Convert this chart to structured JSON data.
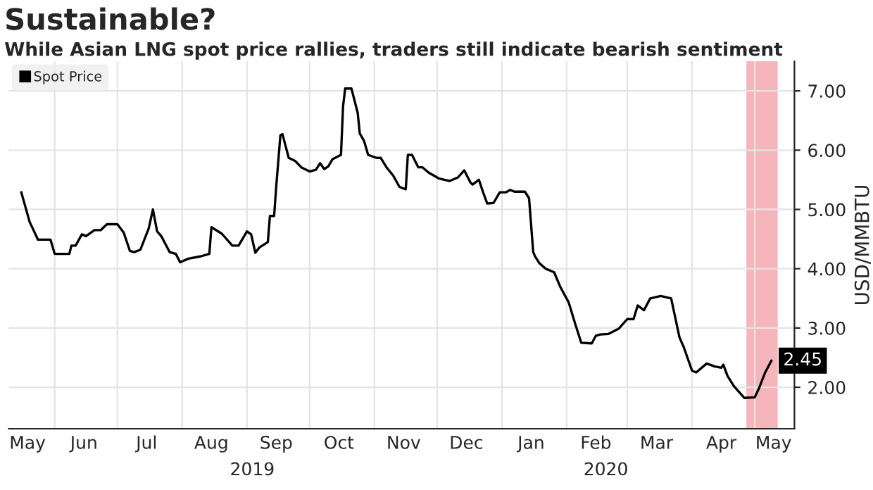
{
  "chart_data": {
    "type": "line",
    "title": "Sustainable?",
    "subtitle": "While Asian LNG spot price rallies, traders still indicate bearish sentiment",
    "ylabel": "USD/MMBTU",
    "x": [
      "2019-05-16",
      "2019-05-20",
      "2019-05-24",
      "2019-05-30",
      "2019-06-01",
      "2019-06-08",
      "2019-06-09",
      "2019-06-11",
      "2019-06-14",
      "2019-06-16",
      "2019-06-20",
      "2019-06-23",
      "2019-06-26",
      "2019-07-01",
      "2019-07-04",
      "2019-07-07",
      "2019-07-09",
      "2019-07-12",
      "2019-07-16",
      "2019-07-18",
      "2019-07-20",
      "2019-07-22",
      "2019-07-26",
      "2019-07-29",
      "2019-07-31",
      "2019-08-04",
      "2019-08-10",
      "2019-08-14",
      "2019-08-15",
      "2019-08-20",
      "2019-08-25",
      "2019-08-28",
      "2019-09-01",
      "2019-09-03",
      "2019-09-05",
      "2019-09-07",
      "2019-09-11",
      "2019-09-12",
      "2019-09-14",
      "2019-09-15",
      "2019-09-17",
      "2019-09-18",
      "2019-09-21",
      "2019-09-24",
      "2019-09-27",
      "2019-10-01",
      "2019-10-04",
      "2019-10-06",
      "2019-10-08",
      "2019-10-10",
      "2019-10-12",
      "2019-10-16",
      "2019-10-17",
      "2019-10-18",
      "2019-10-21",
      "2019-10-24",
      "2019-10-25",
      "2019-10-27",
      "2019-10-29",
      "2019-11-02",
      "2019-11-04",
      "2019-11-07",
      "2019-11-10",
      "2019-11-13",
      "2019-11-16",
      "2019-11-17",
      "2019-11-19",
      "2019-11-22",
      "2019-11-24",
      "2019-11-27",
      "2019-12-02",
      "2019-12-07",
      "2019-12-11",
      "2019-12-14",
      "2019-12-17",
      "2019-12-18",
      "2019-12-21",
      "2019-12-23",
      "2019-12-25",
      "2019-12-28",
      "2019-12-31",
      "2020-01-03",
      "2020-01-05",
      "2020-01-07",
      "2020-01-12",
      "2020-01-14",
      "2020-01-16",
      "2020-01-17",
      "2020-01-19",
      "2020-01-22",
      "2020-01-26",
      "2020-01-29",
      "2020-02-02",
      "2020-02-05",
      "2020-02-08",
      "2020-02-13",
      "2020-02-15",
      "2020-02-17",
      "2020-02-21",
      "2020-02-26",
      "2020-03-01",
      "2020-03-04",
      "2020-03-06",
      "2020-03-09",
      "2020-03-12",
      "2020-03-17",
      "2020-03-22",
      "2020-03-26",
      "2020-03-28",
      "2020-04-01",
      "2020-04-03",
      "2020-04-08",
      "2020-04-12",
      "2020-04-15",
      "2020-04-16",
      "2020-04-18",
      "2020-04-21",
      "2020-04-26",
      "2020-05-01",
      "2020-05-03",
      "2020-05-06",
      "2020-05-09"
    ],
    "series": [
      {
        "name": "Spot Price",
        "color": "#000000",
        "values": [
          5.29,
          4.79,
          4.49,
          4.49,
          4.25,
          4.25,
          4.39,
          4.39,
          4.58,
          4.55,
          4.65,
          4.65,
          4.75,
          4.75,
          4.61,
          4.3,
          4.28,
          4.32,
          4.68,
          5.0,
          4.63,
          4.55,
          4.28,
          4.25,
          4.11,
          4.17,
          4.21,
          4.25,
          4.7,
          4.59,
          4.39,
          4.39,
          4.63,
          4.58,
          4.27,
          4.36,
          4.45,
          4.89,
          4.89,
          5.38,
          6.25,
          6.27,
          5.87,
          5.82,
          5.71,
          5.64,
          5.67,
          5.78,
          5.68,
          5.73,
          5.85,
          5.92,
          6.74,
          7.04,
          7.04,
          6.63,
          6.28,
          6.16,
          5.92,
          5.87,
          5.87,
          5.7,
          5.57,
          5.38,
          5.34,
          5.92,
          5.92,
          5.71,
          5.71,
          5.62,
          5.52,
          5.48,
          5.54,
          5.66,
          5.45,
          5.42,
          5.5,
          5.29,
          5.1,
          5.11,
          5.29,
          5.29,
          5.33,
          5.3,
          5.3,
          5.19,
          4.28,
          4.2,
          4.09,
          4.0,
          3.94,
          3.69,
          3.43,
          3.08,
          2.75,
          2.74,
          2.87,
          2.89,
          2.9,
          2.99,
          3.15,
          3.15,
          3.38,
          3.3,
          3.5,
          3.54,
          3.5,
          2.84,
          2.68,
          2.28,
          2.25,
          2.4,
          2.35,
          2.33,
          2.38,
          2.19,
          2.02,
          1.82,
          1.83,
          1.98,
          2.25,
          2.45
        ],
        "value_labels": [
          null,
          null,
          null,
          null,
          null,
          null,
          null,
          null,
          null,
          null,
          null,
          null,
          null,
          null,
          null,
          null,
          null,
          null,
          null,
          null,
          null,
          null,
          null,
          null,
          null,
          null,
          null,
          null,
          null,
          null,
          null,
          null,
          null,
          null,
          null,
          null,
          null,
          null,
          null,
          null,
          null,
          null,
          null,
          null,
          null,
          null,
          null,
          null,
          null,
          null,
          null,
          null,
          null,
          null,
          null,
          null,
          null,
          null,
          null,
          null,
          null,
          null,
          null,
          null,
          null,
          null,
          null,
          null,
          null,
          null,
          null,
          null,
          null,
          null,
          null,
          null,
          null,
          null,
          null,
          null,
          null,
          null,
          null,
          null,
          null,
          null,
          null,
          null,
          null,
          null,
          null,
          null,
          null,
          null,
          null,
          null,
          null,
          null,
          null,
          null,
          null,
          null,
          null,
          null,
          null,
          null,
          null,
          null,
          null,
          null,
          null,
          null,
          null,
          null,
          null,
          null,
          null,
          null,
          null,
          null,
          null,
          "2.45"
        ]
      }
    ],
    "xlim": [
      "2019-05-10",
      "2020-05-20"
    ],
    "xticks": [
      {
        "value": "2019-05-19",
        "label": "May"
      },
      {
        "value": "2019-06-01",
        "label": null
      },
      {
        "value": "2019-06-15",
        "label": "Jun"
      },
      {
        "value": "2019-07-01",
        "label": null
      },
      {
        "value": "2019-07-15",
        "label": "Jul"
      },
      {
        "value": "2019-08-01",
        "label": null
      },
      {
        "value": "2019-08-15",
        "label": "Aug"
      },
      {
        "value": "2019-09-01",
        "label": null
      },
      {
        "value": "2019-09-15",
        "label": "Sep"
      },
      {
        "value": "2019-10-01",
        "label": null
      },
      {
        "value": "2019-10-15",
        "label": "Oct"
      },
      {
        "value": "2019-11-01",
        "label": null
      },
      {
        "value": "2019-11-15",
        "label": "Nov"
      },
      {
        "value": "2019-12-01",
        "label": null
      },
      {
        "value": "2019-12-15",
        "label": "Dec"
      },
      {
        "value": "2020-01-01",
        "label": null
      },
      {
        "value": "2020-01-15",
        "label": "Jan"
      },
      {
        "value": "2020-02-01",
        "label": null
      },
      {
        "value": "2020-02-15",
        "label": "Feb"
      },
      {
        "value": "2020-03-01",
        "label": null
      },
      {
        "value": "2020-03-15",
        "label": "Mar"
      },
      {
        "value": "2020-04-01",
        "label": null
      },
      {
        "value": "2020-04-15",
        "label": "Apr"
      },
      {
        "value": "2020-05-01",
        "label": null
      },
      {
        "value": "2020-05-10",
        "label": "May"
      }
    ],
    "ylim": [
      1.3,
      7.5
    ],
    "yticks": [
      {
        "value": 2,
        "label": "2.00"
      },
      {
        "value": 3,
        "label": "3.00"
      },
      {
        "value": 4,
        "label": "4.00"
      },
      {
        "value": 5,
        "label": "5.00"
      },
      {
        "value": 6,
        "label": "6.00"
      },
      {
        "value": 7,
        "label": "7.00"
      }
    ],
    "bands": [
      {
        "axis": "x",
        "from": "2020-04-27",
        "to": "2020-05-12",
        "color": "#f4a3aa"
      }
    ],
    "annotations": [
      "2019",
      "2020"
    ],
    "grid": true,
    "legend": "top left",
    "marker": "none",
    "line_style": "solid"
  }
}
